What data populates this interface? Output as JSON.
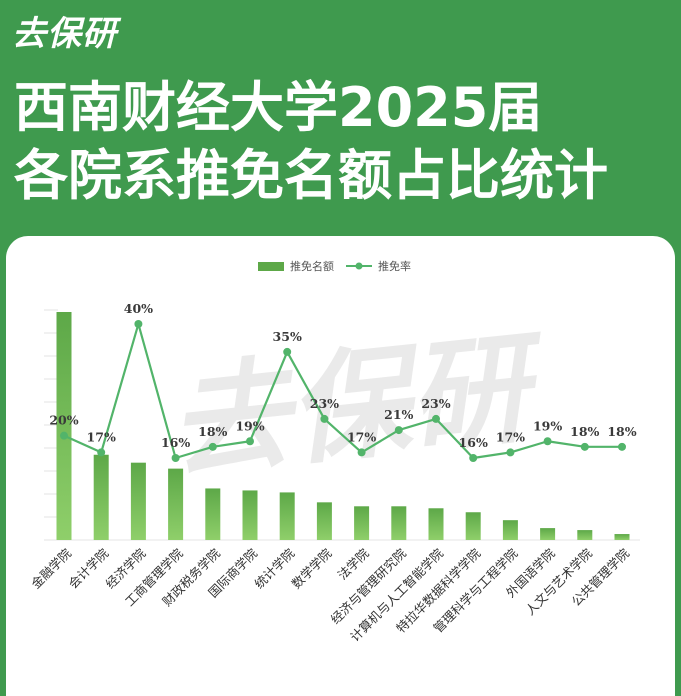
{
  "brand": "去保研",
  "title": {
    "line1": "西南财经大学2025届",
    "line2": "各院系推免名额占比统计"
  },
  "watermark": "去保研",
  "chart_data": {
    "type": "bar",
    "legend": [
      "推免名额",
      "推免率"
    ],
    "legend_position": "top-center",
    "colors": {
      "bar": "#5da848",
      "line": "#52b46a"
    },
    "categories": [
      "金融学院",
      "会计学院",
      "经济学院",
      "工商管理学院",
      "财政税务学院",
      "国际商学院",
      "统计学院",
      "数学学院",
      "法学院",
      "经济与管理研究院",
      "计算机与人工智能学院",
      "特拉华数据科学学院",
      "管理科学与工程学院",
      "外国语学院",
      "人文与艺术学院",
      "公共管理学院"
    ],
    "series": [
      {
        "name": "推免名额",
        "type": "bar",
        "values": [
          115,
          43,
          39,
          36,
          26,
          25,
          24,
          19,
          17,
          17,
          16,
          14,
          10,
          6,
          5,
          3
        ]
      },
      {
        "name": "推免率",
        "type": "line",
        "values": [
          20,
          17,
          40,
          16,
          18,
          19,
          35,
          23,
          17,
          21,
          23,
          16,
          17,
          19,
          18,
          18
        ],
        "labels": [
          "20%",
          "17%",
          "40%",
          "16%",
          "18%",
          "19%",
          "35%",
          "23%",
          "17%",
          "21%",
          "23%",
          "16%",
          "17%",
          "19%",
          "18%",
          "18%"
        ]
      }
    ],
    "grid": true
  }
}
